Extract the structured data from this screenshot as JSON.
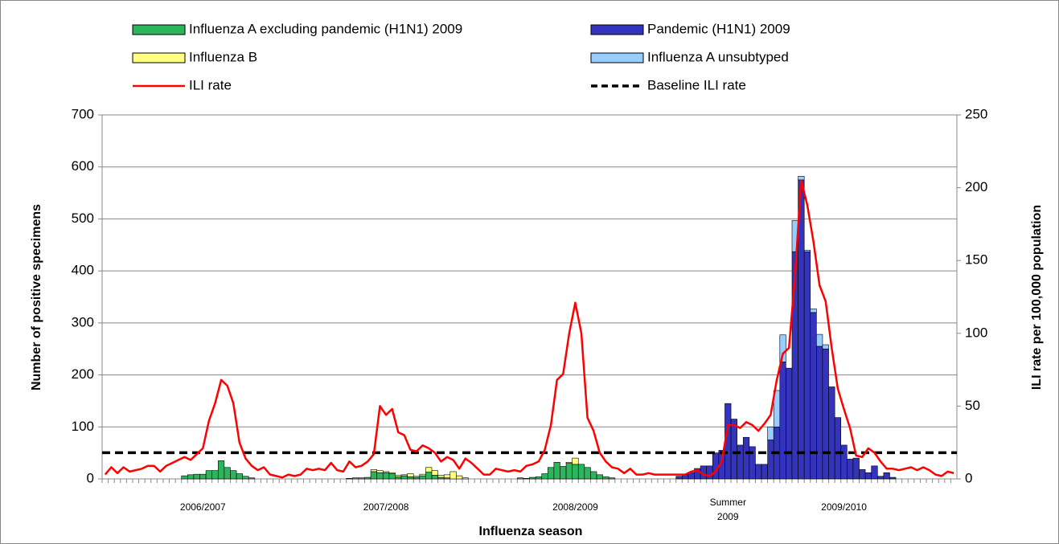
{
  "chart_data": {
    "type": "bar",
    "xlabel": "Influenza season",
    "ylabel": "Number of positive specimens",
    "y2label": "ILI rate per 100,000 population",
    "ylim": [
      0,
      700
    ],
    "yticks": [
      0,
      100,
      200,
      300,
      400,
      500,
      600,
      700
    ],
    "y2lim": [
      0,
      250
    ],
    "y2ticks": [
      0,
      50,
      100,
      150,
      200,
      250
    ],
    "grid": true,
    "stacked": true,
    "legend": "top",
    "categories": [
      null,
      null,
      null,
      null,
      null,
      null,
      null,
      null,
      null,
      null,
      null,
      null,
      null,
      null,
      null,
      null,
      "2006/2007",
      null,
      null,
      null,
      null,
      null,
      null,
      null,
      null,
      null,
      null,
      null,
      null,
      null,
      null,
      null,
      null,
      null,
      null,
      null,
      null,
      null,
      null,
      null,
      null,
      null,
      null,
      null,
      null,
      null,
      "2007/2008",
      null,
      null,
      null,
      null,
      null,
      null,
      null,
      null,
      null,
      null,
      null,
      null,
      null,
      null,
      null,
      null,
      null,
      null,
      null,
      null,
      null,
      null,
      null,
      null,
      null,
      null,
      null,
      null,
      null,
      null,
      "2008/2009",
      null,
      null,
      null,
      null,
      null,
      null,
      null,
      null,
      null,
      null,
      null,
      null,
      null,
      null,
      null,
      null,
      null,
      null,
      null,
      null,
      null,
      null,
      null,
      null,
      "Summer 2009",
      null,
      null,
      null,
      null,
      null,
      null,
      null,
      null,
      null,
      null,
      null,
      null,
      null,
      null,
      null,
      null,
      null,
      null,
      "2009/2010",
      null,
      null,
      null,
      null,
      null,
      null,
      null,
      null,
      null,
      null,
      null,
      null,
      null,
      null,
      null,
      null,
      null,
      null
    ],
    "series": [
      {
        "name": "Influenza A excluding pandemic (H1N1) 2009",
        "color": "#2db55d",
        "values": [
          0,
          0,
          0,
          0,
          0,
          0,
          0,
          0,
          0,
          0,
          0,
          0,
          0,
          6,
          8,
          9,
          9,
          16,
          16,
          35,
          22,
          16,
          10,
          5,
          2,
          0,
          0,
          0,
          0,
          0,
          0,
          0,
          0,
          0,
          0,
          0,
          0,
          0,
          0,
          0,
          1,
          2,
          2,
          3,
          14,
          12,
          12,
          10,
          4,
          6,
          4,
          3,
          6,
          13,
          7,
          3,
          2,
          0,
          0,
          0,
          0,
          0,
          0,
          0,
          0,
          0,
          0,
          0,
          2,
          1,
          3,
          4,
          10,
          22,
          32,
          24,
          30,
          28,
          28,
          22,
          14,
          8,
          4,
          2,
          0,
          0,
          0,
          0,
          0,
          0,
          0,
          0,
          0,
          0,
          0,
          0,
          0,
          0,
          0,
          0,
          0,
          0,
          0,
          0,
          0,
          0,
          0,
          0,
          0,
          0,
          0,
          0,
          0,
          0,
          0,
          0,
          0,
          0,
          0,
          0,
          0,
          0,
          0,
          0,
          0,
          0,
          0,
          0,
          0,
          0,
          0,
          0,
          0,
          0,
          0,
          0,
          0,
          0,
          0,
          0
        ]
      },
      {
        "name": "Pandemic (H1N1) 2009",
        "color": "#3333bb",
        "values": [
          0,
          0,
          0,
          0,
          0,
          0,
          0,
          0,
          0,
          0,
          0,
          0,
          0,
          0,
          0,
          0,
          0,
          0,
          0,
          0,
          0,
          0,
          0,
          0,
          0,
          0,
          0,
          0,
          0,
          0,
          0,
          0,
          0,
          0,
          0,
          0,
          0,
          0,
          0,
          0,
          0,
          0,
          0,
          0,
          0,
          0,
          0,
          0,
          0,
          0,
          0,
          0,
          0,
          0,
          0,
          0,
          0,
          0,
          0,
          0,
          0,
          0,
          0,
          0,
          0,
          0,
          0,
          0,
          0,
          0,
          0,
          0,
          0,
          0,
          0,
          0,
          0,
          0,
          0,
          0,
          0,
          0,
          0,
          0,
          0,
          0,
          0,
          0,
          0,
          0,
          0,
          0,
          0,
          0,
          5,
          8,
          12,
          20,
          25,
          25,
          50,
          55,
          145,
          115,
          65,
          80,
          62,
          28,
          28,
          75,
          100,
          225,
          213,
          437,
          575,
          437,
          320,
          255,
          250,
          177,
          118,
          65,
          38,
          40,
          18,
          12,
          25,
          5,
          12,
          3,
          0,
          0,
          0,
          0,
          0,
          0,
          0,
          0,
          0,
          0
        ]
      },
      {
        "name": "Influenza B",
        "color": "#ffff80",
        "values": [
          0,
          0,
          0,
          0,
          0,
          0,
          0,
          0,
          0,
          0,
          0,
          0,
          0,
          0,
          0,
          0,
          0,
          0,
          0,
          0,
          0,
          0,
          0,
          0,
          0,
          0,
          0,
          0,
          0,
          0,
          0,
          0,
          0,
          0,
          0,
          0,
          0,
          0,
          0,
          0,
          0,
          0,
          0,
          0,
          4,
          4,
          2,
          2,
          3,
          2,
          6,
          2,
          3,
          9,
          9,
          4,
          6,
          14,
          6,
          2,
          0,
          0,
          0,
          0,
          0,
          0,
          0,
          0,
          0,
          0,
          0,
          0,
          0,
          0,
          0,
          0,
          2,
          12,
          0,
          0,
          0,
          0,
          0,
          0,
          0,
          0,
          0,
          0,
          0,
          0,
          0,
          0,
          0,
          0,
          0,
          0,
          0,
          0,
          0,
          0,
          0,
          0,
          0,
          0,
          0,
          0,
          0,
          0,
          0,
          0,
          0,
          0,
          0,
          0,
          0,
          0,
          0,
          0,
          0,
          0,
          0,
          0,
          0,
          0,
          0,
          0,
          0,
          0,
          0,
          0,
          0,
          0,
          0,
          0,
          0,
          0,
          0,
          0,
          0,
          0
        ]
      },
      {
        "name": "Influenza A unsubtyped",
        "color": "#99ccff",
        "values": [
          0,
          0,
          0,
          0,
          0,
          0,
          0,
          0,
          0,
          0,
          0,
          0,
          0,
          0,
          0,
          0,
          0,
          0,
          0,
          0,
          0,
          0,
          0,
          0,
          0,
          0,
          0,
          0,
          0,
          0,
          0,
          0,
          0,
          0,
          0,
          0,
          0,
          0,
          0,
          0,
          0,
          0,
          0,
          0,
          0,
          0,
          0,
          0,
          0,
          0,
          0,
          0,
          0,
          0,
          0,
          0,
          0,
          0,
          0,
          0,
          0,
          0,
          0,
          0,
          0,
          0,
          0,
          0,
          0,
          0,
          0,
          0,
          0,
          0,
          0,
          0,
          0,
          0,
          0,
          0,
          0,
          0,
          0,
          0,
          0,
          0,
          0,
          0,
          0,
          0,
          0,
          0,
          0,
          0,
          0,
          0,
          0,
          0,
          0,
          0,
          0,
          0,
          0,
          0,
          0,
          0,
          0,
          0,
          0,
          25,
          70,
          52,
          0,
          60,
          7,
          3,
          7,
          23,
          8,
          0,
          0,
          0,
          0,
          0,
          0,
          0,
          0,
          0,
          0,
          0,
          0,
          0,
          0,
          0,
          0,
          0,
          0,
          0,
          0,
          0
        ]
      },
      {
        "name": "ILI rate",
        "type": "line",
        "axis": "y2",
        "color": "#ff0000",
        "values": [
          3,
          8,
          4,
          8,
          5,
          6,
          7,
          9,
          9,
          5,
          9,
          11,
          13,
          15,
          13,
          17,
          21,
          40,
          52,
          68,
          64,
          52,
          25,
          14,
          9,
          6,
          8,
          3,
          2,
          1,
          3,
          2,
          3,
          7,
          6,
          7,
          6,
          11,
          6,
          5,
          12,
          8,
          9,
          12,
          17,
          50,
          44,
          48,
          32,
          30,
          20,
          19,
          23,
          21,
          18,
          12,
          15,
          13,
          7,
          14,
          11,
          7,
          3,
          3,
          7,
          6,
          5,
          6,
          5,
          9,
          10,
          12,
          20,
          37,
          68,
          72,
          100,
          121,
          100,
          42,
          33,
          18,
          12,
          8,
          7,
          4,
          7,
          3,
          3,
          4,
          3,
          3,
          3,
          3,
          3,
          3,
          5,
          6,
          3,
          2,
          5,
          12,
          37,
          37,
          35,
          39,
          37,
          33,
          38,
          44,
          68,
          86,
          90,
          140,
          205,
          188,
          163,
          133,
          122,
          90,
          62,
          48,
          35,
          16,
          15,
          21,
          18,
          12,
          7,
          7,
          6,
          7,
          8,
          6,
          8,
          6,
          3,
          2,
          5,
          4
        ]
      }
    ],
    "reference_lines": [
      {
        "name": "Baseline ILI rate",
        "value": 18,
        "axis": "y2",
        "color": "#000000",
        "dash": true
      }
    ]
  }
}
